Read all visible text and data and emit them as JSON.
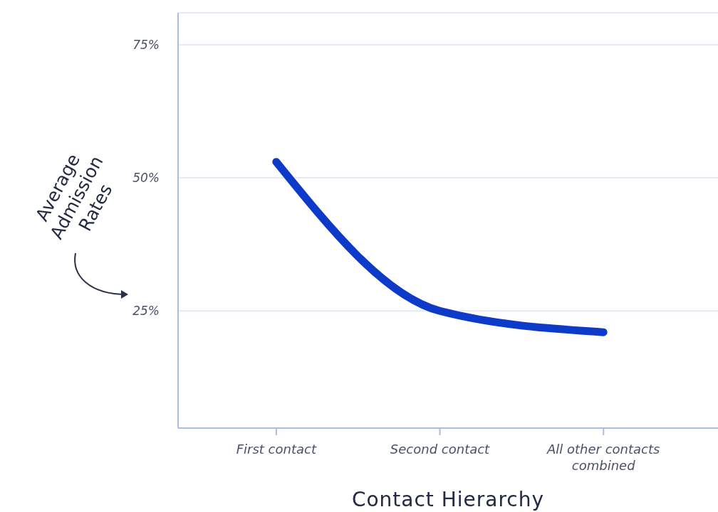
{
  "chart_data": {
    "type": "line",
    "xlabel": "Contact Hierarchy",
    "ylabel": "Average Admission Rates",
    "categories": [
      "First contact",
      "Second contact",
      "All other contacts combined"
    ],
    "series": [
      {
        "color": "#0d3ac8",
        "values": [
          53,
          25,
          21
        ]
      }
    ],
    "ylim": [
      3,
      81
    ],
    "yticks": [
      {
        "value": 25,
        "label": "25%"
      },
      {
        "value": 50,
        "label": "50%"
      },
      {
        "value": 75,
        "label": "75%"
      }
    ],
    "grid": "y",
    "marker": "none",
    "line_style": "solid"
  }
}
